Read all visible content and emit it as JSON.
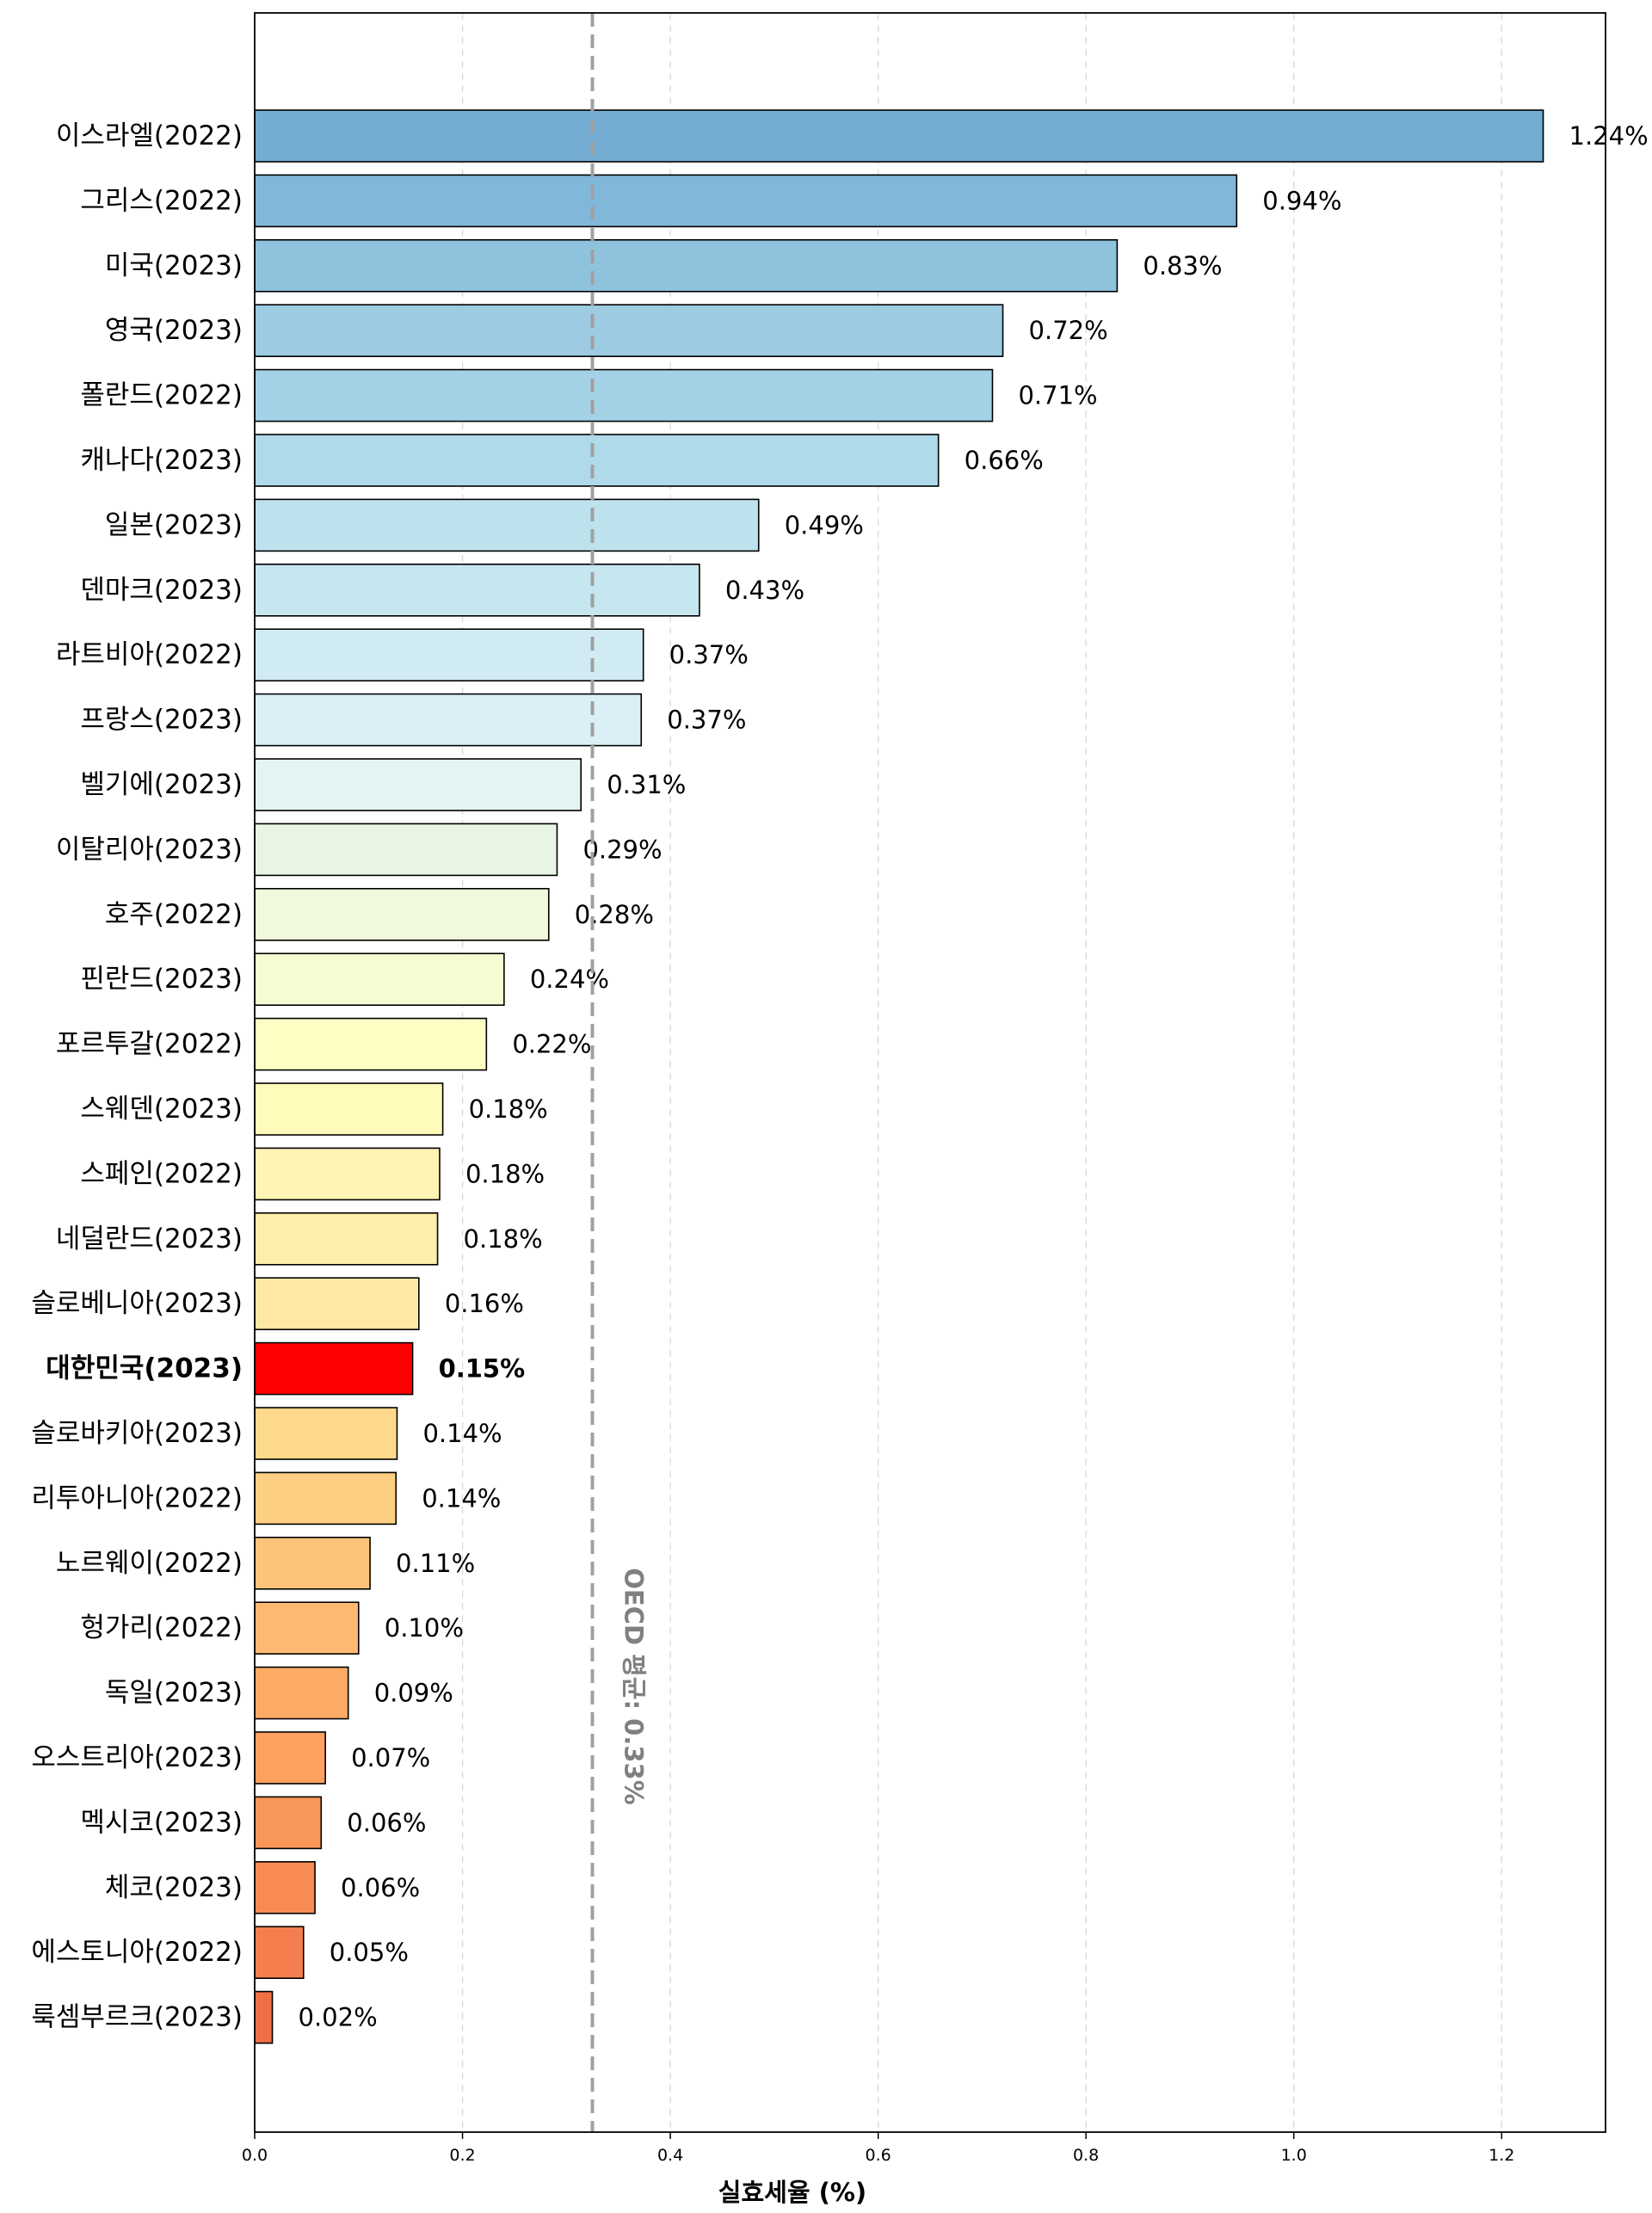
{
  "chart_data": {
    "type": "bar",
    "orientation": "horizontal",
    "categories": [
      "이스라엘(2022)",
      "그리스(2022)",
      "미국(2023)",
      "영국(2023)",
      "폴란드(2022)",
      "캐나다(2023)",
      "일본(2023)",
      "덴마크(2023)",
      "라트비아(2022)",
      "프랑스(2023)",
      "벨기에(2023)",
      "이탈리아(2023)",
      "호주(2022)",
      "핀란드(2023)",
      "포르투갈(2022)",
      "스웨덴(2023)",
      "스페인(2022)",
      "네덜란드(2023)",
      "슬로베니아(2023)",
      "대한민국(2023)",
      "슬로바키아(2023)",
      "리투아니아(2022)",
      "노르웨이(2022)",
      "헝가리(2022)",
      "독일(2023)",
      "오스트리아(2023)",
      "멕시코(2023)",
      "체코(2023)",
      "에스토니아(2022)",
      "룩셈부르크(2023)"
    ],
    "values": [
      1.24,
      0.945,
      0.83,
      0.72,
      0.71,
      0.658,
      0.485,
      0.428,
      0.374,
      0.372,
      0.314,
      0.291,
      0.283,
      0.24,
      0.223,
      0.181,
      0.178,
      0.176,
      0.158,
      0.152,
      0.137,
      0.136,
      0.111,
      0.1,
      0.09,
      0.068,
      0.064,
      0.058,
      0.047,
      0.017
    ],
    "value_labels": [
      "1.24%",
      "0.94%",
      "0.83%",
      "0.72%",
      "0.71%",
      "0.66%",
      "0.49%",
      "0.43%",
      "0.37%",
      "0.37%",
      "0.31%",
      "0.29%",
      "0.28%",
      "0.24%",
      "0.22%",
      "0.18%",
      "0.18%",
      "0.18%",
      "0.16%",
      "0.15%",
      "0.14%",
      "0.14%",
      "0.11%",
      "0.10%",
      "0.09%",
      "0.07%",
      "0.06%",
      "0.06%",
      "0.05%",
      "0.02%"
    ],
    "colors": [
      "#74add1",
      "#81b7d8",
      "#8fc3dd",
      "#9ccbe2",
      "#a3d2e6",
      "#afdaea",
      "#bde2ee",
      "#c6e6f0",
      "#d1ebf3",
      "#daf0f6",
      "#e2f4f3",
      "#e8f5e5",
      "#eff9dc",
      "#f6fcd1",
      "#fdfec4",
      "#fffbbb",
      "#fff4b3",
      "#feeeab",
      "#fee8a3",
      "#ff0000",
      "#fed98b",
      "#fdcf83",
      "#fdc37a",
      "#fdb872",
      "#fdaa66",
      "#fca15f",
      "#f99659",
      "#f78b53",
      "#f47e4d",
      "#f07045"
    ],
    "highlight_category": "대한민국(2023)",
    "highlight_color": "#ff0000",
    "xlabel": "실효세율 (%)",
    "ylabel": "",
    "xlim": [
      0,
      1.3
    ],
    "xticks": [
      0.0,
      0.2,
      0.4,
      0.6,
      0.8,
      1.0,
      1.2
    ],
    "xtick_labels": [
      "0.0",
      "0.2",
      "0.4",
      "0.6",
      "0.8",
      "1.0",
      "1.2"
    ],
    "grid": "x-dashed",
    "reference_line": {
      "value": 0.325,
      "label": "OECD 평균: 0.33%",
      "color": "#a0a0a0"
    }
  }
}
